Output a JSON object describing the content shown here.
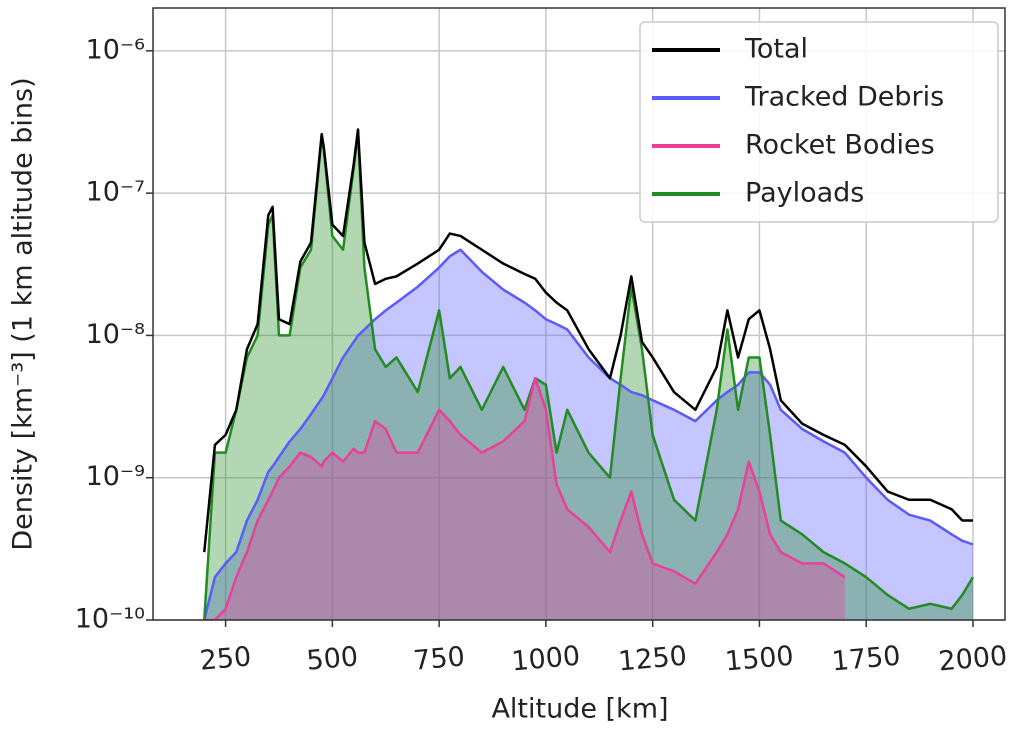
{
  "chart_data": {
    "type": "line",
    "xlabel": "Altitude [km]",
    "ylabel": "Density [km⁻³] (1 km altitude bins)",
    "x": [
      200,
      225,
      250,
      275,
      300,
      325,
      350,
      360,
      375,
      400,
      425,
      450,
      475,
      480,
      500,
      525,
      550,
      560,
      575,
      600,
      625,
      650,
      700,
      750,
      775,
      800,
      850,
      900,
      950,
      975,
      1000,
      1025,
      1050,
      1100,
      1150,
      1175,
      1200,
      1225,
      1250,
      1300,
      1350,
      1400,
      1425,
      1450,
      1475,
      1500,
      1525,
      1550,
      1600,
      1650,
      1700,
      1750,
      1800,
      1850,
      1900,
      1950,
      1975,
      2000
    ],
    "series": [
      {
        "name": "Total",
        "color": "#000000",
        "fill": false,
        "values": [
          3e-10,
          1.7e-09,
          2e-09,
          3e-09,
          8e-09,
          1.2e-08,
          7e-08,
          8e-08,
          1.3e-08,
          1.2e-08,
          3.3e-08,
          4.5e-08,
          2.6e-07,
          2.1e-07,
          6e-08,
          5e-08,
          1.6e-07,
          2.8e-07,
          4.5e-08,
          2.3e-08,
          2.5e-08,
          2.6e-08,
          3.2e-08,
          4e-08,
          5.2e-08,
          5e-08,
          4e-08,
          3.2e-08,
          2.7e-08,
          2.5e-08,
          2e-08,
          1.7e-08,
          1.5e-08,
          8e-09,
          5e-09,
          1e-08,
          2.6e-08,
          9e-09,
          7e-09,
          4e-09,
          3e-09,
          6e-09,
          1.5e-08,
          7e-09,
          1.3e-08,
          1.5e-08,
          8e-09,
          3.5e-09,
          2.4e-09,
          2e-09,
          1.7e-09,
          1.2e-09,
          8e-10,
          7e-10,
          7e-10,
          6e-10,
          5e-10,
          5e-10
        ]
      },
      {
        "name": "Tracked Debris",
        "color": "#5a5aff",
        "fill": true,
        "values": [
          1e-10,
          2e-10,
          2.5e-10,
          3e-10,
          5e-10,
          7e-10,
          1.1e-09,
          1.2e-09,
          1.4e-09,
          1.8e-09,
          2.2e-09,
          2.8e-09,
          3.6e-09,
          3.8e-09,
          5e-09,
          7e-09,
          9e-09,
          1e-08,
          1.1e-08,
          1.3e-08,
          1.5e-08,
          1.7e-08,
          2.2e-08,
          3e-08,
          3.6e-08,
          4e-08,
          2.8e-08,
          2.1e-08,
          1.7e-08,
          1.5e-08,
          1.3e-08,
          1.2e-08,
          1.1e-08,
          7e-09,
          5e-09,
          4.5e-09,
          4e-09,
          3.8e-09,
          3.5e-09,
          3e-09,
          2.5e-09,
          3.5e-09,
          4e-09,
          4.5e-09,
          5.5e-09,
          5.5e-09,
          4.5e-09,
          3e-09,
          2.2e-09,
          1.8e-09,
          1.5e-09,
          1e-09,
          7e-10,
          5.5e-10,
          5e-10,
          4e-10,
          3.6e-10,
          3.4e-10
        ]
      },
      {
        "name": "Rocket Bodies",
        "color": "#e8409a",
        "fill": true,
        "values": [
          1e-10,
          1e-10,
          1.2e-10,
          2e-10,
          3e-10,
          5e-10,
          7e-10,
          8e-10,
          1e-09,
          1.2e-09,
          1.5e-09,
          1.4e-09,
          1.2e-09,
          1.3e-09,
          1.5e-09,
          1.3e-09,
          1.6e-09,
          1.5e-09,
          1.5e-09,
          2.5e-09,
          2.2e-09,
          1.5e-09,
          1.5e-09,
          3e-09,
          2.5e-09,
          2e-09,
          1.5e-09,
          1.8e-09,
          2.5e-09,
          5e-09,
          3e-09,
          9e-10,
          6e-10,
          4.5e-10,
          3e-10,
          5e-10,
          8e-10,
          4e-10,
          2.5e-10,
          2.2e-10,
          1.8e-10,
          3e-10,
          4e-10,
          6e-10,
          1.3e-09,
          8e-10,
          4e-10,
          3e-10,
          2.5e-10,
          2.5e-10,
          2e-10,
          null,
          null,
          null,
          null,
          null,
          null,
          null
        ]
      },
      {
        "name": "Payloads",
        "color": "#228b22",
        "fill": true,
        "values": [
          1e-10,
          1.5e-09,
          1.5e-09,
          3e-09,
          7e-09,
          1e-08,
          6e-08,
          7e-08,
          1e-08,
          1e-08,
          3e-08,
          4e-08,
          2.5e-07,
          2e-07,
          5e-08,
          4e-08,
          1.5e-07,
          2.7e-07,
          3e-08,
          8e-09,
          6e-09,
          7e-09,
          4e-09,
          1.5e-08,
          5e-09,
          6e-09,
          3e-09,
          6e-09,
          3e-09,
          5e-09,
          4.5e-09,
          1.5e-09,
          3e-09,
          1.5e-09,
          1e-09,
          5e-09,
          2.2e-08,
          8e-09,
          2e-09,
          7e-10,
          5e-10,
          3e-09,
          1.1e-08,
          3e-09,
          7e-09,
          7e-09,
          2e-09,
          5e-10,
          4e-10,
          3e-10,
          2.5e-10,
          2e-10,
          1.5e-10,
          1.2e-10,
          1.3e-10,
          1.2e-10,
          1.5e-10,
          2e-10
        ]
      }
    ],
    "fill_order": [
      1,
      3,
      2
    ],
    "xlim": [
      80,
      2075
    ],
    "xticks": [
      250,
      500,
      750,
      1000,
      1250,
      1500,
      1750,
      2000
    ],
    "ylim": [
      1e-10,
      2e-06
    ],
    "yticks": [
      {
        "value": 1e-10,
        "label": "10⁻¹⁰"
      },
      {
        "value": 1e-09,
        "label": "10⁻⁹"
      },
      {
        "value": 1e-08,
        "label": "10⁻⁸"
      },
      {
        "value": 1e-07,
        "label": "10⁻⁷"
      },
      {
        "value": 1e-06,
        "label": "10⁻⁶"
      }
    ],
    "ylog": true,
    "grid": true,
    "legend": "upper right"
  }
}
